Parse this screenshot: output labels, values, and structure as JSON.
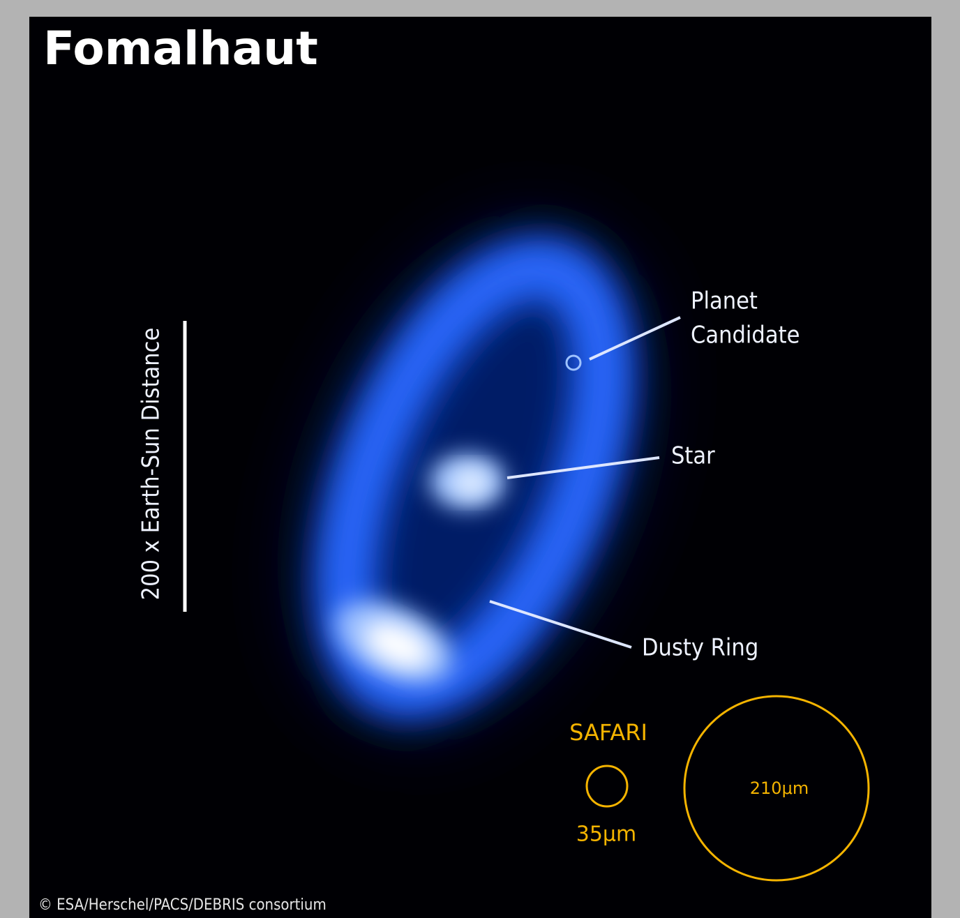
{
  "title": "Fomalhaut",
  "scale_label": "200 x Earth-Sun Distance",
  "labels": {
    "planet": [
      "Planet",
      "Candidate"
    ],
    "star": "Star",
    "ring": "Dusty Ring"
  },
  "instrument": {
    "name": "SAFARI",
    "small_beam": "35μm",
    "large_beam": "210μm"
  },
  "credit": "© ESA/Herschel/PACS/DEBRIS consortium"
}
